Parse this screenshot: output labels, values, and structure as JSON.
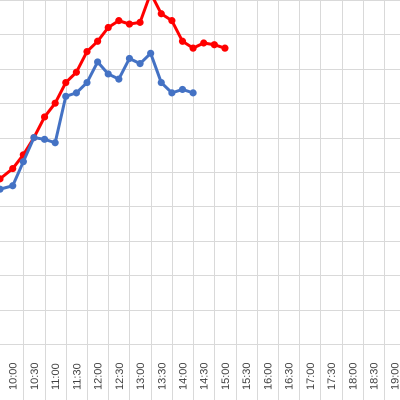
{
  "chart_data": {
    "type": "line",
    "title": "",
    "xlabel": "",
    "ylabel": "",
    "grid": "vertical-and-horizontal",
    "categories": [
      "10:00",
      "10:30",
      "11:00",
      "11:30",
      "12:00",
      "12:30",
      "13:00",
      "13:30",
      "14:00",
      "14:30",
      "15:00",
      "15:30",
      "16:00",
      "16:30",
      "17:00",
      "17:30",
      "18:00",
      "18:30",
      "19:00"
    ],
    "x_positions": [
      {
        "label": "10:00",
        "value": 0
      },
      {
        "label": "10:30",
        "value": 1
      },
      {
        "label": "11:00",
        "value": 2
      },
      {
        "label": "11:30",
        "value": 3
      },
      {
        "label": "12:00",
        "value": 4
      },
      {
        "label": "12:30",
        "value": 5
      },
      {
        "label": "13:00",
        "value": 6
      },
      {
        "label": "13:30",
        "value": 7
      },
      {
        "label": "14:00",
        "value": 8
      },
      {
        "label": "14:30",
        "value": 9
      },
      {
        "label": "15:00",
        "value": 10
      },
      {
        "label": "15:30",
        "value": 11
      },
      {
        "label": "16:00",
        "value": 12
      },
      {
        "label": "16:30",
        "value": 13
      },
      {
        "label": "17:00",
        "value": 14
      },
      {
        "label": "17:30",
        "value": 15
      },
      {
        "label": "18:00",
        "value": 16
      },
      {
        "label": "18:30",
        "value": 17
      },
      {
        "label": "19:00",
        "value": 18
      }
    ],
    "xlim": [
      -0.6,
      18.25
    ],
    "ylim": [
      0,
      10
    ],
    "series": [
      {
        "color": "#ff0000",
        "points": [
          {
            "x": -0.6,
            "y": 4.8
          },
          {
            "x": 0,
            "y": 5.1
          },
          {
            "x": 0.5,
            "y": 5.5
          },
          {
            "x": 1,
            "y": 6.0
          },
          {
            "x": 1.5,
            "y": 6.6
          },
          {
            "x": 2,
            "y": 7.0
          },
          {
            "x": 2.5,
            "y": 7.6
          },
          {
            "x": 3,
            "y": 7.9
          },
          {
            "x": 3.5,
            "y": 8.5
          },
          {
            "x": 4,
            "y": 8.8
          },
          {
            "x": 4.5,
            "y": 9.2
          },
          {
            "x": 5,
            "y": 9.4
          },
          {
            "x": 5.5,
            "y": 9.3
          },
          {
            "x": 6,
            "y": 9.35
          },
          {
            "x": 6.5,
            "y": 10.2
          },
          {
            "x": 7,
            "y": 9.6
          },
          {
            "x": 7.5,
            "y": 9.4
          },
          {
            "x": 8,
            "y": 8.8
          },
          {
            "x": 8.5,
            "y": 8.6
          },
          {
            "x": 9,
            "y": 8.75
          },
          {
            "x": 9.5,
            "y": 8.7
          },
          {
            "x": 10,
            "y": 8.6
          }
        ]
      },
      {
        "color": "#4472c4",
        "points": [
          {
            "x": -0.6,
            "y": 4.5
          },
          {
            "x": 0,
            "y": 4.6
          },
          {
            "x": 0.5,
            "y": 5.3
          },
          {
            "x": 1,
            "y": 6.0
          },
          {
            "x": 1.5,
            "y": 5.95
          },
          {
            "x": 2,
            "y": 5.85
          },
          {
            "x": 2.5,
            "y": 7.2
          },
          {
            "x": 3,
            "y": 7.3
          },
          {
            "x": 3.5,
            "y": 7.6
          },
          {
            "x": 4,
            "y": 8.2
          },
          {
            "x": 4.5,
            "y": 7.85
          },
          {
            "x": 5,
            "y": 7.7
          },
          {
            "x": 5.5,
            "y": 8.3
          },
          {
            "x": 6,
            "y": 8.15
          },
          {
            "x": 6.5,
            "y": 8.45
          },
          {
            "x": 7,
            "y": 7.6
          },
          {
            "x": 7.5,
            "y": 7.3
          },
          {
            "x": 8,
            "y": 7.4
          },
          {
            "x": 8.5,
            "y": 7.3
          }
        ]
      }
    ]
  }
}
